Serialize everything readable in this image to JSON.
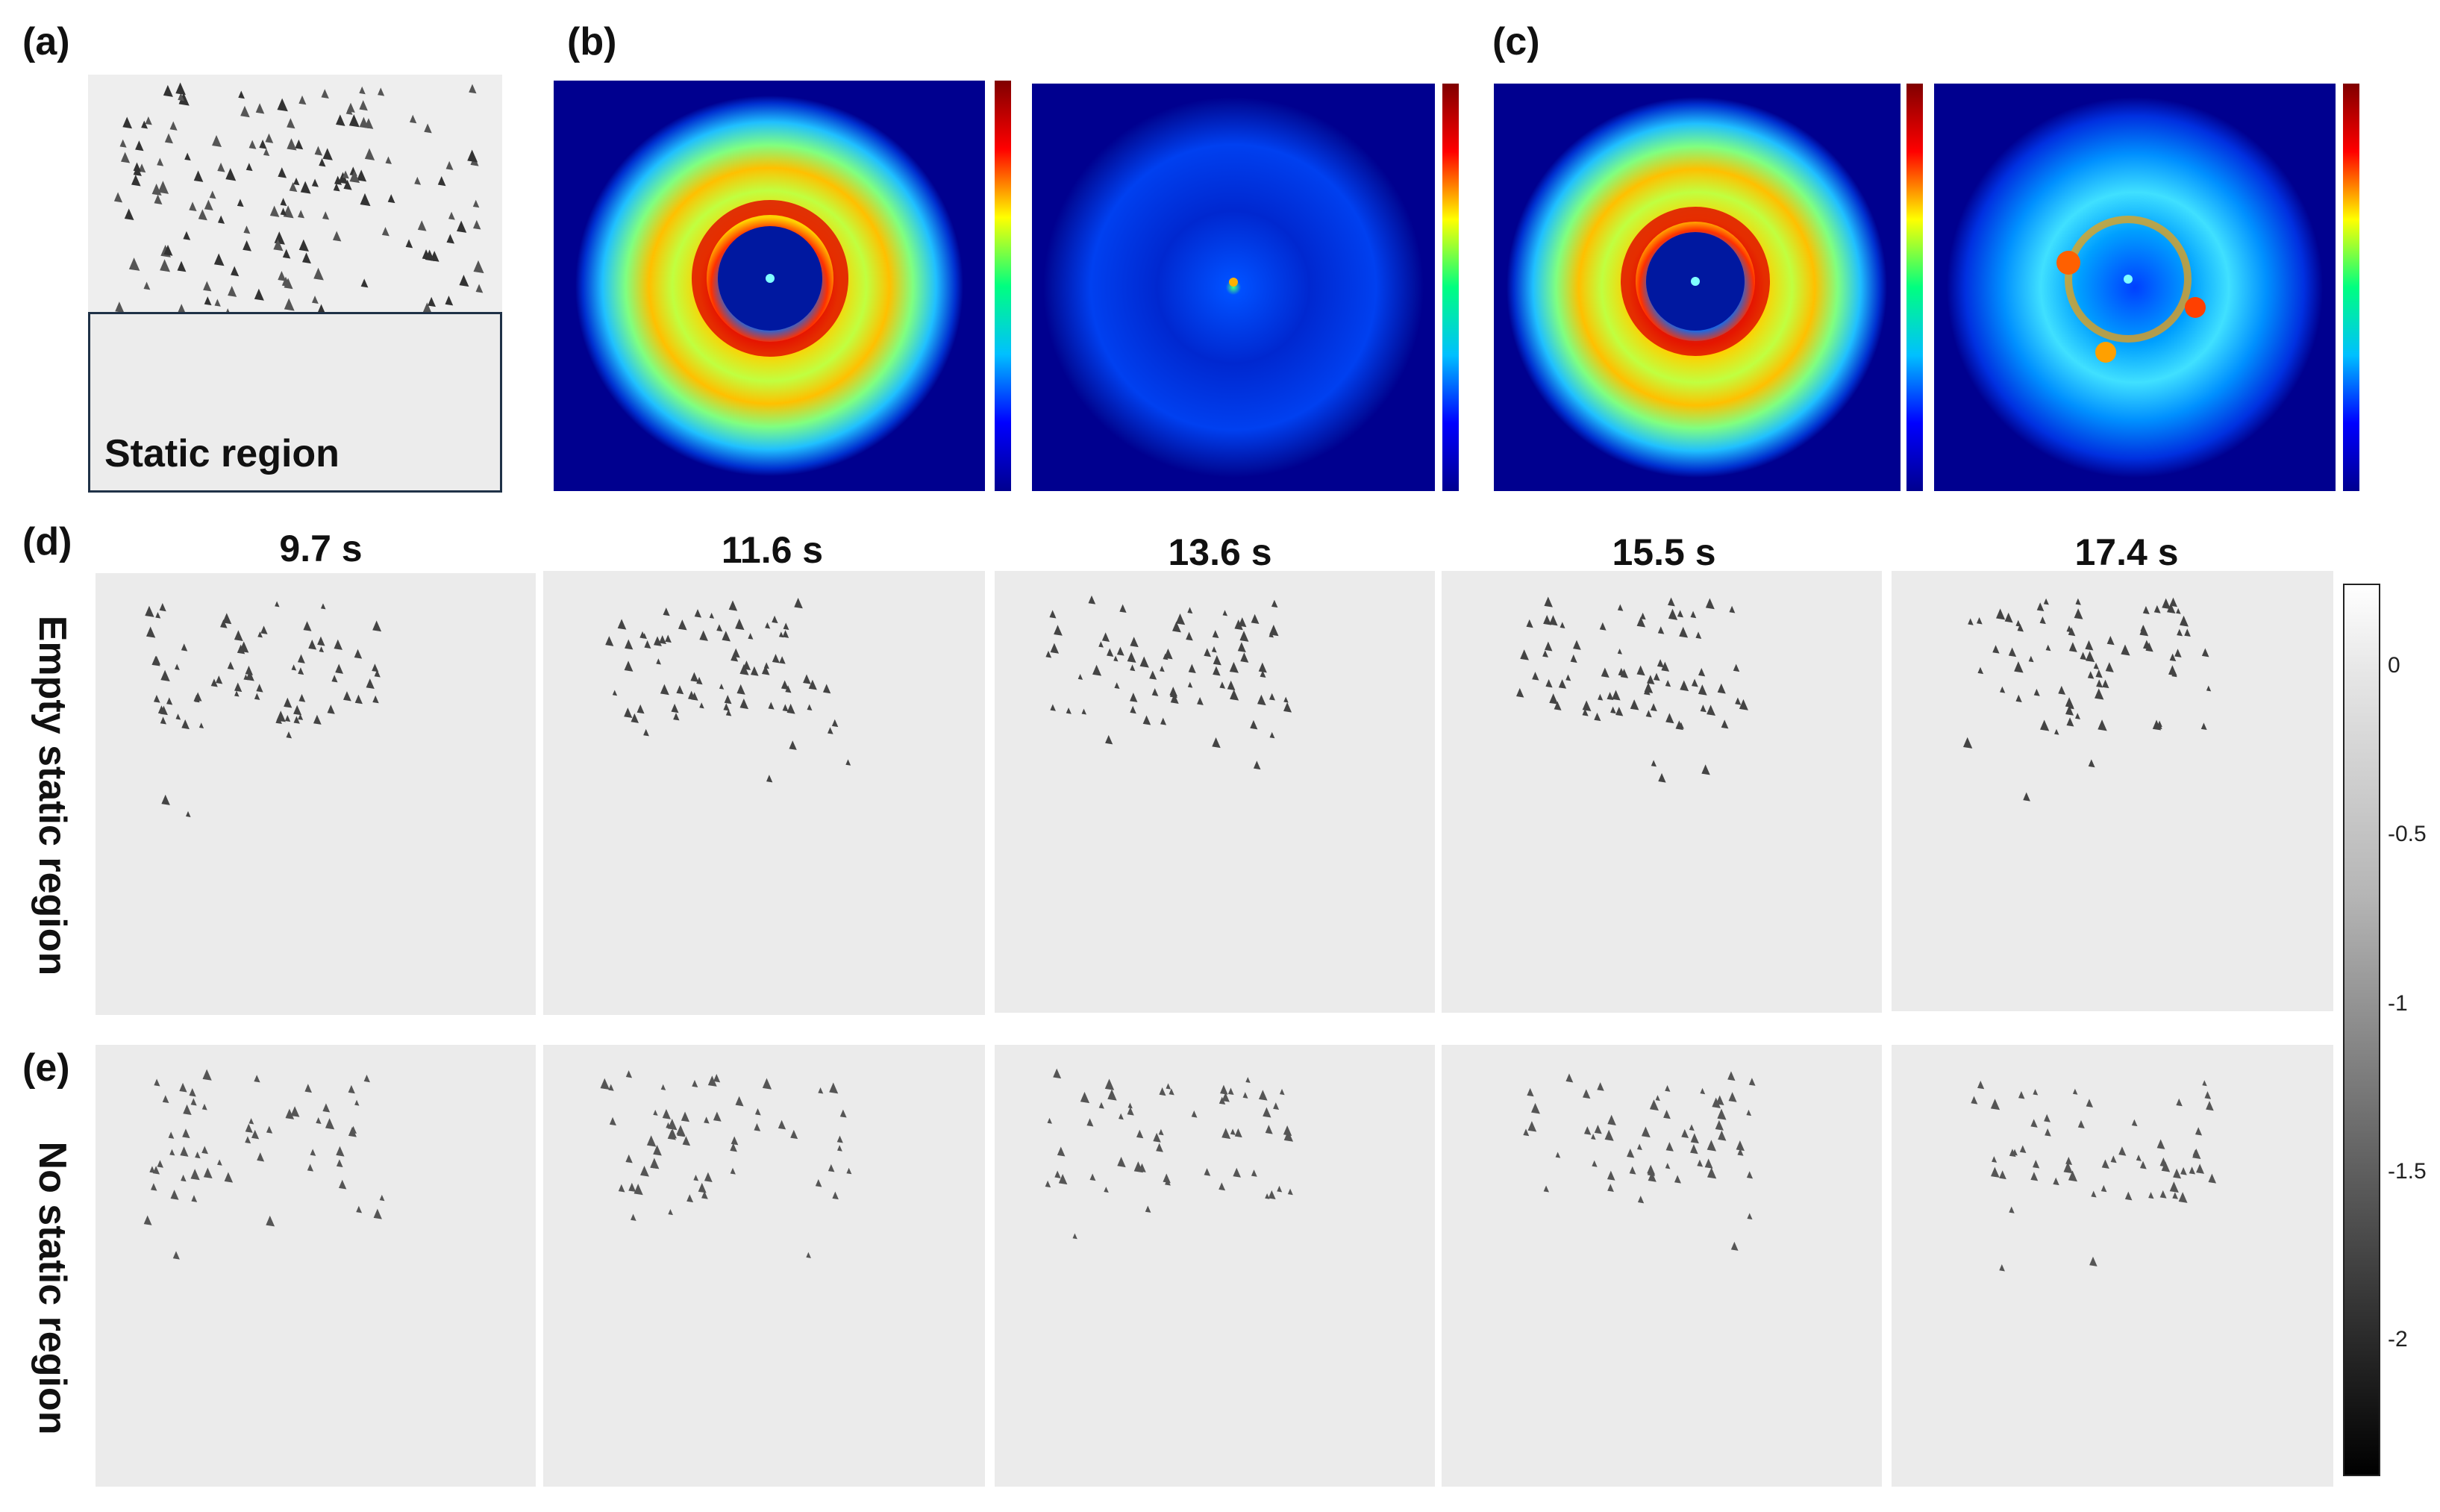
{
  "panel_labels": {
    "a": "(a)",
    "b": "(b)",
    "c": "(c)",
    "d": "(d)",
    "e": "(e)"
  },
  "static_region_label": "Static region",
  "time_labels": [
    "9.7 s",
    "11.6 s",
    "13.6 s",
    "15.5 s",
    "17.4 s"
  ],
  "row_labels": {
    "d": "Empty static region",
    "e": "No static region"
  },
  "colorbar": {
    "ticks": [
      "0",
      "-0.5",
      "-1",
      "-1.5",
      "-2"
    ]
  },
  "colors": {
    "jet_low": "#00008f",
    "jet_high": "#800000",
    "panel_bg": "#ebebeb",
    "box_border": "#1f3147"
  }
}
